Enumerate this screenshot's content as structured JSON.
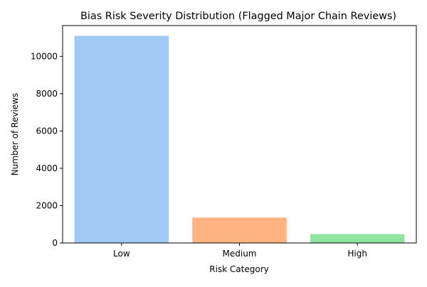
{
  "chart_data": {
    "type": "bar",
    "title": "Bias Risk Severity Distribution (Flagged Major Chain Reviews)",
    "xlabel": "Risk Category",
    "ylabel": "Number of Reviews",
    "categories": [
      "Low",
      "Medium",
      "High"
    ],
    "values": [
      11100,
      1360,
      470
    ],
    "colors": [
      "#a1c9f4",
      "#ffb482",
      "#8de5a1"
    ],
    "ylim": [
      0,
      11650
    ],
    "yticks": [
      0,
      2000,
      4000,
      6000,
      8000,
      10000
    ],
    "grid": false,
    "legend": "none"
  }
}
